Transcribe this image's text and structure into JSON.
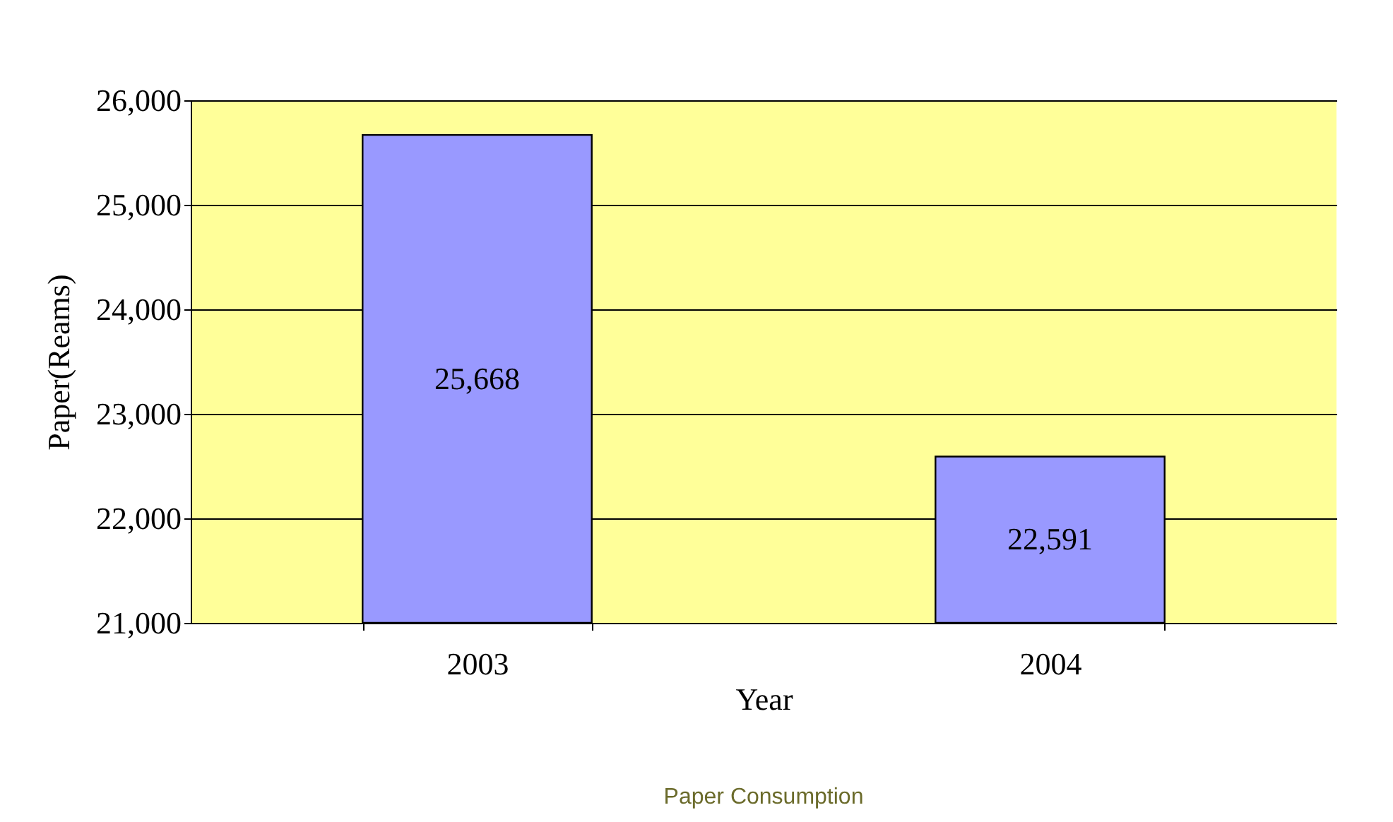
{
  "chart_data": {
    "type": "bar",
    "categories": [
      "2003",
      "2004"
    ],
    "values": [
      25668,
      22591
    ],
    "color": "#9999ff",
    "xlabel": "Year",
    "ylabel": "Paper(Reams)",
    "ylim": [
      21000,
      26000
    ],
    "yticks": [
      {
        "value": 21000,
        "label": "21,000"
      },
      {
        "value": 22000,
        "label": "22,000"
      },
      {
        "value": 23000,
        "label": "23,000"
      },
      {
        "value": 24000,
        "label": "24,000"
      },
      {
        "value": 25000,
        "label": "25,000"
      },
      {
        "value": 26000,
        "label": "26,000"
      }
    ],
    "value_labels": [
      "25,668",
      "22,591"
    ],
    "grid": "y",
    "annotations": [
      "Paper Consumption"
    ]
  }
}
